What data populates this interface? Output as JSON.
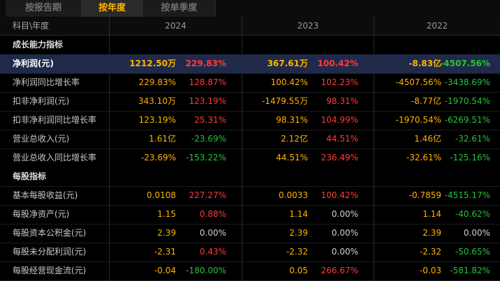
{
  "tabs": [
    "按报告期",
    "按年度",
    "按单季度"
  ],
  "active_tab": 1,
  "header": {
    "label": "科目\\年度",
    "years": [
      "2024",
      "2023",
      "2022"
    ]
  },
  "colors": {
    "up": "#ff3b3b",
    "down": "#27c33a",
    "value": "#ffb400",
    "neutral": "#cfcfcf"
  },
  "rows": [
    {
      "label": "成长能力指标",
      "type": "section"
    },
    {
      "label": "净利润(元)",
      "type": "highlight",
      "cells": [
        {
          "value": "1212.50万",
          "change": "229.83%",
          "dir": "up"
        },
        {
          "value": "367.61万",
          "change": "100.42%",
          "dir": "up"
        },
        {
          "value": "-8.83亿",
          "change": "-4507.56%",
          "dir": "down"
        }
      ]
    },
    {
      "label": "净利润同比增长率",
      "type": "data",
      "cells": [
        {
          "value": "229.83%",
          "change": "128.87%",
          "dir": "up"
        },
        {
          "value": "100.42%",
          "change": "102.23%",
          "dir": "up"
        },
        {
          "value": "-4507.56%",
          "change": "-3438.69%",
          "dir": "down"
        }
      ]
    },
    {
      "label": "扣非净利润(元)",
      "type": "data",
      "cells": [
        {
          "value": "343.10万",
          "change": "123.19%",
          "dir": "up"
        },
        {
          "value": "-1479.55万",
          "change": "98.31%",
          "dir": "up"
        },
        {
          "value": "-8.77亿",
          "change": "-1970.54%",
          "dir": "down"
        }
      ]
    },
    {
      "label": "扣非净利润同比增长率",
      "type": "data",
      "cells": [
        {
          "value": "123.19%",
          "change": "25.31%",
          "dir": "up"
        },
        {
          "value": "98.31%",
          "change": "104.99%",
          "dir": "up"
        },
        {
          "value": "-1970.54%",
          "change": "-6269.51%",
          "dir": "down"
        }
      ]
    },
    {
      "label": "营业总收入(元)",
      "type": "data",
      "cells": [
        {
          "value": "1.61亿",
          "change": "-23.69%",
          "dir": "down"
        },
        {
          "value": "2.12亿",
          "change": "44.51%",
          "dir": "up"
        },
        {
          "value": "1.46亿",
          "change": "-32.61%",
          "dir": "down"
        }
      ]
    },
    {
      "label": "营业总收入同比增长率",
      "type": "data",
      "cells": [
        {
          "value": "-23.69%",
          "change": "-153.22%",
          "dir": "down"
        },
        {
          "value": "44.51%",
          "change": "236.49%",
          "dir": "up"
        },
        {
          "value": "-32.61%",
          "change": "-125.16%",
          "dir": "down"
        }
      ]
    },
    {
      "label": "每股指标",
      "type": "section"
    },
    {
      "label": "基本每股收益(元)",
      "type": "data",
      "cells": [
        {
          "value": "0.0108",
          "change": "227.27%",
          "dir": "up"
        },
        {
          "value": "0.0033",
          "change": "100.42%",
          "dir": "up"
        },
        {
          "value": "-0.7859",
          "change": "-4515.17%",
          "dir": "down"
        }
      ]
    },
    {
      "label": "每股净资产(元)",
      "type": "data",
      "cells": [
        {
          "value": "1.15",
          "change": "0.88%",
          "dir": "up"
        },
        {
          "value": "1.14",
          "change": "0.00%",
          "dir": "neutral"
        },
        {
          "value": "1.14",
          "change": "-40.62%",
          "dir": "down"
        }
      ]
    },
    {
      "label": "每股资本公积金(元)",
      "type": "data",
      "cells": [
        {
          "value": "2.39",
          "change": "0.00%",
          "dir": "neutral"
        },
        {
          "value": "2.39",
          "change": "0.00%",
          "dir": "neutral"
        },
        {
          "value": "2.39",
          "change": "0.00%",
          "dir": "neutral"
        }
      ]
    },
    {
      "label": "每股未分配利润(元)",
      "type": "data",
      "cells": [
        {
          "value": "-2.31",
          "change": "0.43%",
          "dir": "up"
        },
        {
          "value": "-2.32",
          "change": "0.00%",
          "dir": "neutral"
        },
        {
          "value": "-2.32",
          "change": "-50.65%",
          "dir": "down"
        }
      ]
    },
    {
      "label": "每股经营现金流(元)",
      "type": "data",
      "cells": [
        {
          "value": "-0.04",
          "change": "-180.00%",
          "dir": "down"
        },
        {
          "value": "0.05",
          "change": "266.67%",
          "dir": "up"
        },
        {
          "value": "-0.03",
          "change": "-581.82%",
          "dir": "down"
        }
      ]
    }
  ]
}
